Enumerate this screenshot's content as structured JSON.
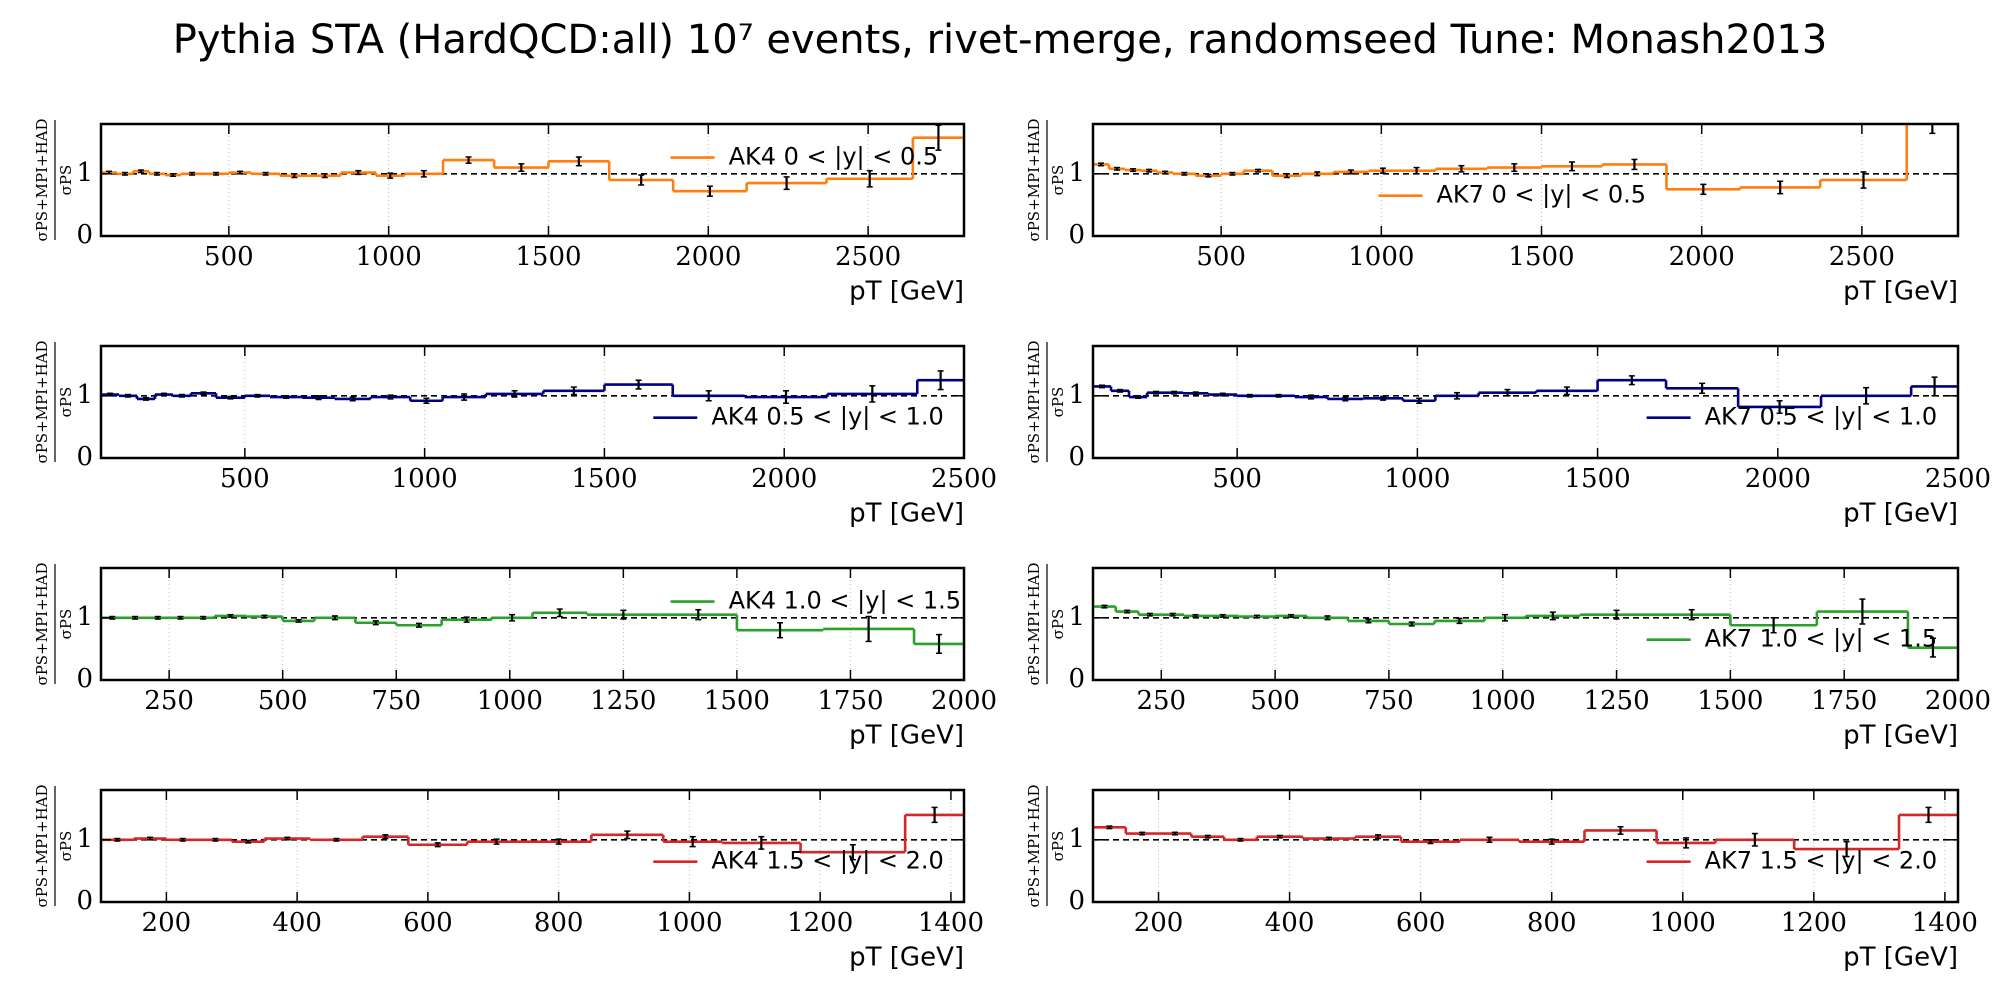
{
  "title": "Pythia STA (HardQCD:all) 10⁷ events, rivet-merge, randomseed Tune: Monash2013",
  "chart_data": [
    {
      "type": "step",
      "legend_loc": "upper right",
      "xlim": [
        100,
        2800
      ],
      "xticks": [
        500,
        1000,
        1500,
        2000,
        2500
      ],
      "ylim": [
        0,
        1.8
      ],
      "yticks": [
        0,
        1
      ],
      "hline": 1,
      "grid": "x",
      "xlabel": "pT [GeV]",
      "ylabel_numerator": "σPS+MPI+HAD",
      "ylabel_denominator": "σPS",
      "series": [
        {
          "name": "AK4 0 < |y| < 0.5",
          "color": "#ff7f0e",
          "bins": [
            100,
            150,
            200,
            250,
            300,
            350,
            420,
            500,
            570,
            660,
            750,
            850,
            960,
            1050,
            1170,
            1330,
            1500,
            1690,
            1890,
            2120,
            2370,
            2640,
            2800
          ],
          "values": [
            1.02,
            1.0,
            1.04,
            1.0,
            0.98,
            1.0,
            1.0,
            1.02,
            1.0,
            0.97,
            0.97,
            1.02,
            0.97,
            1.0,
            1.22,
            1.1,
            1.2,
            0.9,
            0.72,
            0.85,
            0.92,
            1.58
          ],
          "errors": [
            0.02,
            0.02,
            0.02,
            0.02,
            0.02,
            0.02,
            0.02,
            0.02,
            0.02,
            0.03,
            0.03,
            0.03,
            0.04,
            0.05,
            0.05,
            0.06,
            0.07,
            0.08,
            0.08,
            0.1,
            0.13,
            0.2
          ]
        }
      ]
    },
    {
      "type": "step",
      "legend_loc": "lower center",
      "xlim": [
        100,
        2800
      ],
      "xticks": [
        500,
        1000,
        1500,
        2000,
        2500
      ],
      "ylim": [
        0,
        1.8
      ],
      "yticks": [
        0,
        1
      ],
      "hline": 1,
      "grid": "x",
      "xlabel": "pT [GeV]",
      "ylabel_numerator": "σPS+MPI+HAD",
      "ylabel_denominator": "σPS",
      "series": [
        {
          "name": "AK7 0 < |y| < 0.5",
          "color": "#ff7f0e",
          "bins": [
            100,
            150,
            200,
            250,
            300,
            350,
            420,
            500,
            570,
            660,
            750,
            850,
            960,
            1050,
            1170,
            1330,
            1500,
            1690,
            1890,
            2120,
            2370,
            2640,
            2800
          ],
          "values": [
            1.15,
            1.08,
            1.06,
            1.05,
            1.02,
            1.0,
            0.97,
            1.0,
            1.05,
            0.97,
            1.0,
            1.03,
            1.05,
            1.05,
            1.08,
            1.1,
            1.12,
            1.15,
            0.75,
            0.78,
            0.9,
            1.85
          ],
          "errors": [
            0.02,
            0.02,
            0.02,
            0.02,
            0.02,
            0.02,
            0.02,
            0.02,
            0.02,
            0.03,
            0.03,
            0.03,
            0.04,
            0.05,
            0.05,
            0.06,
            0.07,
            0.08,
            0.08,
            0.1,
            0.13,
            0.2
          ]
        }
      ]
    },
    {
      "type": "step",
      "legend_loc": "lower right",
      "xlim": [
        100,
        2500
      ],
      "xticks": [
        500,
        1000,
        1500,
        2000,
        2500
      ],
      "ylim": [
        0,
        1.8
      ],
      "yticks": [
        0,
        1
      ],
      "hline": 1,
      "grid": "x",
      "xlabel": "pT [GeV]",
      "ylabel_numerator": "σPS+MPI+HAD",
      "ylabel_denominator": "σPS",
      "series": [
        {
          "name": "AK4 0.5 < |y| < 1.0",
          "color": "#000080",
          "bins": [
            100,
            150,
            200,
            250,
            300,
            350,
            420,
            500,
            570,
            660,
            750,
            850,
            960,
            1050,
            1170,
            1330,
            1500,
            1690,
            1890,
            2120,
            2370,
            2500
          ],
          "values": [
            1.02,
            1.0,
            0.95,
            1.02,
            1.0,
            1.04,
            0.97,
            1.0,
            0.98,
            0.97,
            0.95,
            0.98,
            0.92,
            0.98,
            1.03,
            1.08,
            1.18,
            1.0,
            0.98,
            1.03,
            1.25
          ],
          "errors": [
            0.02,
            0.02,
            0.02,
            0.02,
            0.02,
            0.02,
            0.02,
            0.02,
            0.02,
            0.03,
            0.03,
            0.03,
            0.04,
            0.05,
            0.05,
            0.06,
            0.07,
            0.08,
            0.1,
            0.13,
            0.15
          ]
        }
      ]
    },
    {
      "type": "step",
      "legend_loc": "lower right",
      "xlim": [
        100,
        2500
      ],
      "xticks": [
        500,
        1000,
        1500,
        2000,
        2500
      ],
      "ylim": [
        0,
        1.8
      ],
      "yticks": [
        0,
        1
      ],
      "hline": 1,
      "grid": "x",
      "xlabel": "pT [GeV]",
      "ylabel_numerator": "σPS+MPI+HAD",
      "ylabel_denominator": "σPS",
      "series": [
        {
          "name": "AK7 0.5 < |y| < 1.0",
          "color": "#000080",
          "bins": [
            100,
            150,
            200,
            250,
            300,
            350,
            420,
            500,
            570,
            660,
            750,
            850,
            960,
            1050,
            1170,
            1330,
            1500,
            1690,
            1890,
            2120,
            2370,
            2500
          ],
          "values": [
            1.15,
            1.08,
            0.98,
            1.05,
            1.05,
            1.04,
            1.02,
            1.0,
            1.0,
            0.98,
            0.95,
            0.96,
            0.92,
            1.0,
            1.05,
            1.08,
            1.25,
            1.12,
            0.82,
            1.0,
            1.15
          ],
          "errors": [
            0.02,
            0.02,
            0.02,
            0.02,
            0.02,
            0.02,
            0.02,
            0.02,
            0.02,
            0.03,
            0.03,
            0.03,
            0.04,
            0.05,
            0.05,
            0.06,
            0.07,
            0.08,
            0.1,
            0.13,
            0.15
          ]
        }
      ]
    },
    {
      "type": "step",
      "legend_loc": "upper right",
      "xlim": [
        100,
        2000
      ],
      "xticks": [
        250,
        500,
        750,
        1000,
        1250,
        1500,
        1750,
        2000
      ],
      "ylim": [
        0,
        1.8
      ],
      "yticks": [
        0,
        1
      ],
      "hline": 1,
      "grid": "x",
      "xlabel": "pT [GeV]",
      "ylabel_numerator": "σPS+MPI+HAD",
      "ylabel_denominator": "σPS",
      "series": [
        {
          "name": "AK4 1.0 < |y| < 1.5",
          "color": "#2ca02c",
          "bins": [
            100,
            150,
            200,
            250,
            300,
            350,
            420,
            500,
            570,
            660,
            750,
            850,
            960,
            1050,
            1170,
            1330,
            1500,
            1690,
            1890,
            2000
          ],
          "values": [
            1.0,
            1.0,
            1.0,
            1.0,
            1.0,
            1.03,
            1.02,
            0.95,
            1.0,
            0.92,
            0.88,
            0.97,
            1.0,
            1.08,
            1.05,
            1.05,
            0.8,
            0.82,
            0.58
          ],
          "errors": [
            0.02,
            0.02,
            0.02,
            0.02,
            0.02,
            0.02,
            0.02,
            0.02,
            0.03,
            0.03,
            0.03,
            0.04,
            0.05,
            0.06,
            0.07,
            0.08,
            0.12,
            0.2,
            0.15
          ]
        }
      ]
    },
    {
      "type": "step",
      "legend_loc": "lower right",
      "xlim": [
        100,
        2000
      ],
      "xticks": [
        250,
        500,
        750,
        1000,
        1250,
        1500,
        1750,
        2000
      ],
      "ylim": [
        0,
        1.8
      ],
      "yticks": [
        0,
        1
      ],
      "hline": 1,
      "grid": "x",
      "xlabel": "pT [GeV]",
      "ylabel_numerator": "σPS+MPI+HAD",
      "ylabel_denominator": "σPS",
      "series": [
        {
          "name": "AK7 1.0 < |y| < 1.5",
          "color": "#2ca02c",
          "bins": [
            100,
            150,
            200,
            250,
            300,
            350,
            420,
            500,
            570,
            660,
            750,
            850,
            960,
            1050,
            1170,
            1330,
            1500,
            1690,
            1890,
            2000
          ],
          "values": [
            1.18,
            1.1,
            1.05,
            1.05,
            1.03,
            1.03,
            1.02,
            1.03,
            1.0,
            0.95,
            0.9,
            0.95,
            1.0,
            1.03,
            1.05,
            1.05,
            0.88,
            1.1,
            0.52
          ],
          "errors": [
            0.02,
            0.02,
            0.02,
            0.02,
            0.02,
            0.02,
            0.02,
            0.02,
            0.03,
            0.03,
            0.03,
            0.04,
            0.05,
            0.06,
            0.07,
            0.08,
            0.12,
            0.2,
            0.15
          ]
        }
      ]
    },
    {
      "type": "step",
      "legend_loc": "lower right",
      "xlim": [
        100,
        1420
      ],
      "xticks": [
        200,
        400,
        600,
        800,
        1000,
        1200,
        1400
      ],
      "ylim": [
        0,
        1.8
      ],
      "yticks": [
        0,
        1
      ],
      "hline": 1,
      "grid": "x",
      "xlabel": "pT [GeV]",
      "ylabel_numerator": "σPS+MPI+HAD",
      "ylabel_denominator": "σPS",
      "series": [
        {
          "name": "AK4 1.5 < |y| < 2.0",
          "color": "#d62728",
          "bins": [
            100,
            150,
            200,
            250,
            300,
            350,
            420,
            500,
            570,
            660,
            750,
            850,
            960,
            1050,
            1170,
            1330,
            1420
          ],
          "values": [
            1.0,
            1.02,
            1.0,
            1.0,
            0.97,
            1.02,
            1.0,
            1.05,
            0.92,
            0.97,
            0.97,
            1.08,
            0.97,
            0.95,
            0.8,
            1.4
          ],
          "errors": [
            0.02,
            0.02,
            0.02,
            0.02,
            0.02,
            0.02,
            0.02,
            0.03,
            0.03,
            0.04,
            0.04,
            0.06,
            0.08,
            0.1,
            0.12,
            0.12
          ]
        }
      ]
    },
    {
      "type": "step",
      "legend_loc": "lower right",
      "xlim": [
        100,
        1420
      ],
      "xticks": [
        200,
        400,
        600,
        800,
        1000,
        1200,
        1400
      ],
      "ylim": [
        0,
        1.8
      ],
      "yticks": [
        0,
        1
      ],
      "hline": 1,
      "grid": "x",
      "xlabel": "pT [GeV]",
      "ylabel_numerator": "σPS+MPI+HAD",
      "ylabel_denominator": "σPS",
      "series": [
        {
          "name": "AK7 1.5 < |y| < 2.0",
          "color": "#d62728",
          "bins": [
            100,
            150,
            200,
            250,
            300,
            350,
            420,
            500,
            570,
            660,
            750,
            850,
            960,
            1050,
            1170,
            1330,
            1420
          ],
          "values": [
            1.2,
            1.1,
            1.1,
            1.05,
            1.0,
            1.05,
            1.02,
            1.05,
            0.97,
            1.0,
            0.97,
            1.15,
            0.95,
            1.0,
            0.85,
            1.4
          ],
          "errors": [
            0.02,
            0.02,
            0.02,
            0.02,
            0.02,
            0.02,
            0.02,
            0.03,
            0.03,
            0.04,
            0.04,
            0.06,
            0.08,
            0.1,
            0.12,
            0.12
          ]
        }
      ]
    }
  ]
}
